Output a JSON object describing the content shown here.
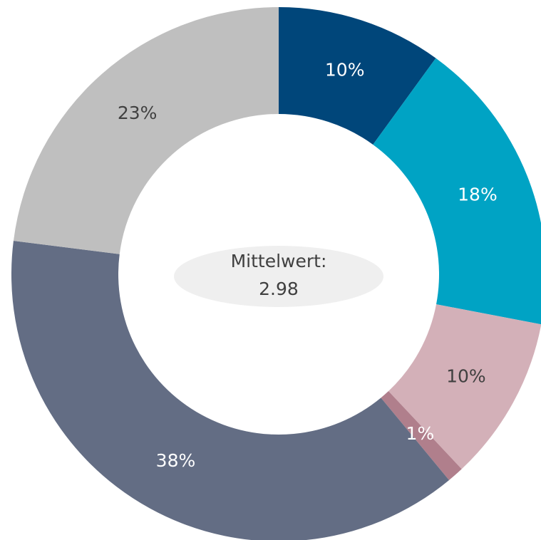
{
  "chart_data": {
    "type": "donut",
    "categories": [
      null,
      null,
      null,
      null,
      null,
      null
    ],
    "values": [
      10,
      18,
      10,
      1,
      38,
      23
    ],
    "value_labels": [
      "10%",
      "18%",
      "10%",
      "1%",
      "38%",
      "23%"
    ],
    "colors": [
      "#00467a",
      "#00a3c4",
      "#d3b0b8",
      "#b07f8c",
      "#636d84",
      "#bfbfbf"
    ],
    "label_colors": [
      "#ffffff",
      "#ffffff",
      "#404040",
      "#ffffff",
      "#ffffff",
      "#404040"
    ],
    "center_label": {
      "text": "Mittelwert:",
      "value": 2.98
    }
  }
}
